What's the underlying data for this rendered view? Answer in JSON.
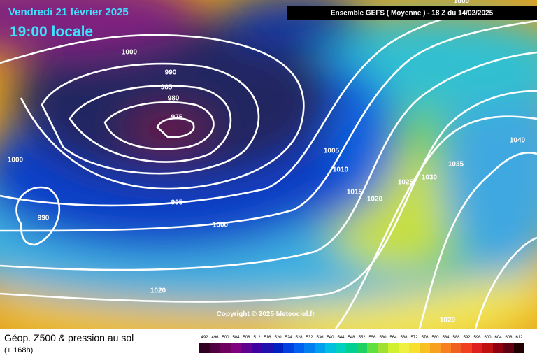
{
  "header": {
    "date": "Vendredi 21 février 2025",
    "time": "19:00 locale",
    "model": "Ensemble GEFS  ( Moyenne )  -  18 Z du 14/02/2025"
  },
  "isobar_labels": [
    1000,
    990,
    985,
    980,
    975,
    1000,
    990,
    995,
    1000,
    1020,
    1005,
    1010,
    1015,
    1020,
    1025,
    1030,
    1035,
    1040,
    1020,
    1000
  ],
  "copyright": "Copyright © 2025 Meteociel.fr",
  "footer": {
    "title": "Géop. Z500 & pression au sol",
    "lead": "(+ 168h)"
  },
  "legend": {
    "levels": [
      492,
      496,
      500,
      504,
      508,
      512,
      516,
      520,
      524,
      528,
      532,
      536,
      540,
      544,
      548,
      552,
      556,
      560,
      564,
      568,
      572,
      576,
      580,
      584,
      588,
      592,
      596,
      600,
      604,
      608,
      612
    ]
  }
}
